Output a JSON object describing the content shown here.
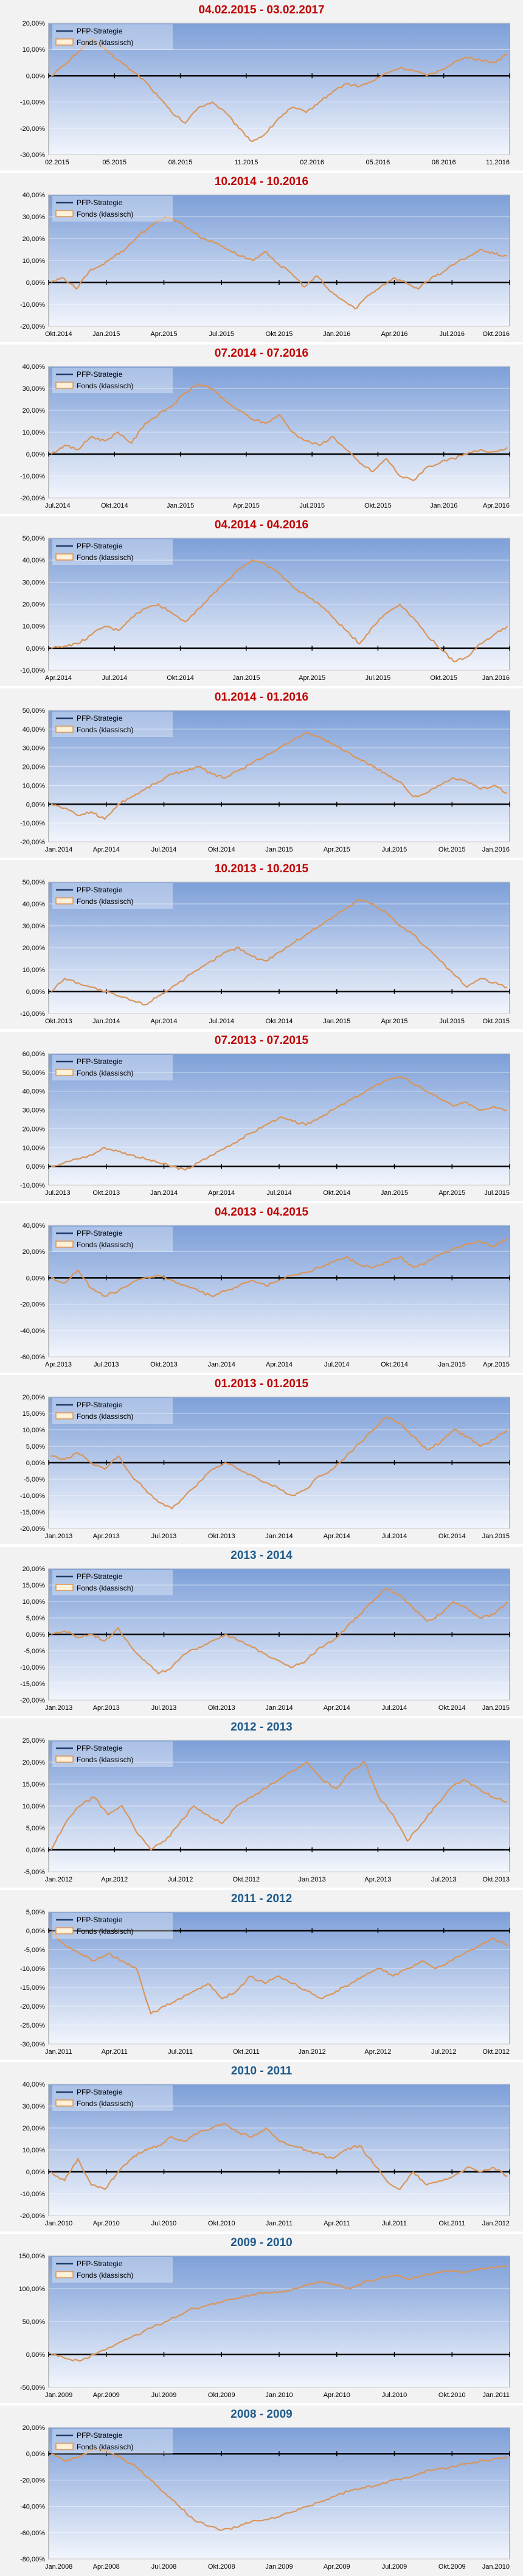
{
  "legend": {
    "series_a": "PFP-Strategie",
    "series_b": "Fonds (klassisch)"
  },
  "colors": {
    "series_a": "#1f3d6b",
    "series_b": "#d9955a",
    "title_red": "#c00000",
    "title_blue": "#1f5a8c",
    "plot_top": "#7d9fd8",
    "plot_bottom": "#f2f5fc",
    "zero_line": "#000000"
  },
  "chart_data": [
    {
      "type": "line",
      "title": "04.02.2015 - 03.02.2017",
      "title_color": "red",
      "yticks": [
        "20,00%",
        "10,00%",
        "0,00%",
        "-10,00%",
        "-20,00%",
        "-30,00%"
      ],
      "ylim": [
        -30,
        20
      ],
      "xticks": [
        "02.2015",
        "05.2015",
        "08.2015",
        "11.2015",
        "02.2016",
        "05.2016",
        "08.2016",
        "11.2016"
      ],
      "series": [
        {
          "name": "Fonds (klassisch)",
          "values": [
            0,
            4,
            9,
            14,
            10,
            6,
            2,
            -2,
            -8,
            -14,
            -18,
            -12,
            -10,
            -14,
            -20,
            -25,
            -22,
            -16,
            -12,
            -14,
            -10,
            -6,
            -3,
            -4,
            -2,
            1,
            3,
            2,
            0,
            2,
            5,
            7,
            6,
            5,
            8
          ]
        }
      ]
    },
    {
      "type": "line",
      "title": "10.2014 - 10.2016",
      "title_color": "red",
      "yticks": [
        "40,00%",
        "30,00%",
        "20,00%",
        "10,00%",
        "0,00%",
        "-10,00%",
        "-20,00%"
      ],
      "ylim": [
        -20,
        40
      ],
      "xticks": [
        "Okt.2014",
        "Jan.2015",
        "Apr.2015",
        "Jul.2015",
        "Okt.2015",
        "Jan.2016",
        "Apr.2016",
        "Jul.2016",
        "Okt.2016"
      ],
      "series": [
        {
          "name": "Fonds (klassisch)",
          "values": [
            0,
            2,
            -3,
            5,
            8,
            12,
            16,
            22,
            26,
            30,
            28,
            24,
            20,
            18,
            15,
            12,
            10,
            14,
            8,
            4,
            -2,
            3,
            -4,
            -8,
            -12,
            -6,
            -2,
            2,
            0,
            -3,
            2,
            5,
            9,
            12,
            15,
            13,
            12
          ]
        }
      ]
    },
    {
      "type": "line",
      "title": "07.2014 - 07.2016",
      "title_color": "red",
      "yticks": [
        "40,00%",
        "30,00%",
        "20,00%",
        "10,00%",
        "0,00%",
        "-10,00%",
        "-20,00%"
      ],
      "ylim": [
        -20,
        40
      ],
      "xticks": [
        "Jul.2014",
        "Okt.2014",
        "Jan.2015",
        "Apr.2015",
        "Jul.2015",
        "Okt.2015",
        "Jan.2016",
        "Apr.2016"
      ],
      "series": [
        {
          "name": "Fonds (klassisch)",
          "values": [
            0,
            4,
            2,
            8,
            6,
            10,
            5,
            14,
            18,
            22,
            28,
            32,
            30,
            24,
            20,
            16,
            14,
            18,
            10,
            6,
            4,
            8,
            2,
            -4,
            -8,
            -2,
            -10,
            -12,
            -6,
            -4,
            -2,
            0,
            2,
            1,
            3
          ]
        }
      ]
    },
    {
      "type": "line",
      "title": "04.2014 - 04.2016",
      "title_color": "red",
      "yticks": [
        "50,00%",
        "40,00%",
        "30,00%",
        "20,00%",
        "10,00%",
        "0,00%",
        "-10,00%"
      ],
      "ylim": [
        -10,
        50
      ],
      "xticks": [
        "Apr.2014",
        "Jul.2014",
        "Okt.2014",
        "Jan.2015",
        "Apr.2015",
        "Jul.2015",
        "Okt.2015",
        "Jan.2016"
      ],
      "series": [
        {
          "name": "Fonds (klassisch)",
          "values": [
            0,
            1,
            2,
            6,
            10,
            8,
            14,
            18,
            20,
            16,
            12,
            18,
            24,
            30,
            36,
            40,
            38,
            34,
            28,
            24,
            20,
            14,
            8,
            2,
            10,
            16,
            20,
            14,
            6,
            0,
            -6,
            -4,
            2,
            6,
            10
          ]
        }
      ]
    },
    {
      "type": "line",
      "title": "01.2014 - 01.2016",
      "title_color": "red",
      "yticks": [
        "50,00%",
        "40,00%",
        "30,00%",
        "20,00%",
        "10,00%",
        "0,00%",
        "-10,00%",
        "-20,00%"
      ],
      "ylim": [
        -20,
        50
      ],
      "xticks": [
        "Jan.2014",
        "Apr.2014",
        "Jul.2014",
        "Okt.2014",
        "Jan.2015",
        "Apr.2015",
        "Jul.2015",
        "Okt.2015",
        "Jan.2016"
      ],
      "series": [
        {
          "name": "Fonds (klassisch)",
          "values": [
            0,
            -2,
            -6,
            -4,
            -8,
            0,
            4,
            8,
            12,
            16,
            18,
            20,
            16,
            14,
            18,
            22,
            26,
            30,
            34,
            38,
            36,
            32,
            28,
            24,
            20,
            16,
            12,
            4,
            6,
            10,
            14,
            12,
            8,
            10,
            6
          ]
        }
      ]
    },
    {
      "type": "line",
      "title": "10.2013 - 10.2015",
      "title_color": "red",
      "yticks": [
        "50,00%",
        "40,00%",
        "30,00%",
        "20,00%",
        "10,00%",
        "0,00%",
        "-10,00%"
      ],
      "ylim": [
        -10,
        50
      ],
      "xticks": [
        "Okt.2013",
        "Jan.2014",
        "Apr.2014",
        "Jul.2014",
        "Okt.2014",
        "Jan.2015",
        "Apr.2015",
        "Jul.2015",
        "Okt.2015"
      ],
      "series": [
        {
          "name": "Fonds (klassisch)",
          "values": [
            0,
            6,
            4,
            2,
            0,
            -2,
            -4,
            -6,
            -2,
            2,
            6,
            10,
            14,
            18,
            20,
            16,
            14,
            18,
            22,
            26,
            30,
            34,
            38,
            42,
            40,
            36,
            30,
            26,
            20,
            14,
            8,
            2,
            6,
            4,
            2
          ]
        }
      ]
    },
    {
      "type": "line",
      "title": "07.2013 - 07.2015",
      "title_color": "red",
      "yticks": [
        "60,00%",
        "50,00%",
        "40,00%",
        "30,00%",
        "20,00%",
        "10,00%",
        "0,00%",
        "-10,00%"
      ],
      "ylim": [
        -10,
        60
      ],
      "xticks": [
        "Jul.2013",
        "Okt.2013",
        "Jan.2014",
        "Apr.2014",
        "Jul.2014",
        "Okt.2014",
        "Jan.2015",
        "Apr.2015",
        "Jul.2015"
      ],
      "series": [
        {
          "name": "Fonds (klassisch)",
          "values": [
            0,
            2,
            4,
            6,
            10,
            8,
            6,
            4,
            2,
            0,
            -2,
            2,
            6,
            10,
            14,
            18,
            22,
            26,
            24,
            22,
            26,
            30,
            34,
            38,
            42,
            46,
            48,
            44,
            40,
            36,
            32,
            34,
            30,
            32,
            30
          ]
        }
      ]
    },
    {
      "type": "line",
      "title": "04.2013 - 04.2015",
      "title_color": "red",
      "yticks": [
        "40,00%",
        "20,00%",
        "0,00%",
        "-20,00%",
        "-40,00%",
        "-60,00%"
      ],
      "ylim": [
        -60,
        40
      ],
      "xticks": [
        "Apr.2013",
        "Jul.2013",
        "Okt.2013",
        "Jan.2014",
        "Apr.2014",
        "Jul.2014",
        "Okt.2014",
        "Jan.2015",
        "Apr.2015"
      ],
      "series": [
        {
          "name": "Fonds (klassisch)",
          "values": [
            0,
            -4,
            6,
            -8,
            -14,
            -10,
            -4,
            0,
            2,
            -2,
            -6,
            -10,
            -14,
            -10,
            -6,
            -2,
            -6,
            -2,
            2,
            4,
            8,
            12,
            16,
            10,
            8,
            12,
            16,
            8,
            12,
            18,
            22,
            26,
            28,
            24,
            30
          ]
        }
      ]
    },
    {
      "type": "line",
      "title": "01.2013 - 01.2015",
      "title_color": "red",
      "yticks": [
        "20,00%",
        "15,00%",
        "10,00%",
        "5,00%",
        "0,00%",
        "-5,00%",
        "-10,00%",
        "-15,00%",
        "-20,00%"
      ],
      "ylim": [
        -20,
        20
      ],
      "xticks": [
        "Jan.2013",
        "Apr.2013",
        "Jul.2013",
        "Okt.2013",
        "Jan.2014",
        "Apr.2014",
        "Jul.2014",
        "Okt.2014",
        "Jan.2015"
      ],
      "series": [
        {
          "name": "Fonds (klassisch)",
          "values": [
            2,
            1,
            3,
            0,
            -2,
            2,
            -4,
            -8,
            -12,
            -14,
            -10,
            -6,
            -2,
            0,
            -2,
            -4,
            -6,
            -8,
            -10,
            -8,
            -4,
            -2,
            2,
            6,
            10,
            14,
            12,
            8,
            4,
            6,
            10,
            8,
            5,
            7,
            10
          ]
        }
      ]
    },
    {
      "type": "line",
      "title": "2013 - 2014",
      "title_color": "blue",
      "yticks": [
        "20,00%",
        "15,00%",
        "10,00%",
        "5,00%",
        "0,00%",
        "-5,00%",
        "-10,00%",
        "-15,00%",
        "-20,00%"
      ],
      "ylim": [
        -20,
        20
      ],
      "xticks": [
        "Jan.2013",
        "Apr.2013",
        "Jul.2013",
        "Okt.2013",
        "Jan.2014",
        "Apr.2014",
        "Jul.2014",
        "Okt.2014",
        "Jan.2015"
      ],
      "series": [
        {
          "name": "Fonds (klassisch)",
          "values": [
            0,
            1,
            -1,
            0,
            -2,
            2,
            -4,
            -8,
            -12,
            -10,
            -6,
            -4,
            -2,
            0,
            -2,
            -4,
            -6,
            -8,
            -10,
            -8,
            -4,
            -2,
            2,
            6,
            10,
            14,
            12,
            8,
            4,
            6,
            10,
            8,
            5,
            6,
            10
          ]
        }
      ]
    },
    {
      "type": "line",
      "title": "2012 - 2013",
      "title_color": "blue",
      "yticks": [
        "25,00%",
        "20,00%",
        "15,00%",
        "10,00%",
        "5,00%",
        "0,00%",
        "-5,00%"
      ],
      "ylim": [
        -5,
        25
      ],
      "xticks": [
        "Jan.2012",
        "Apr.2012",
        "Jul.2012",
        "Okt.2012",
        "Jan.2013",
        "Apr.2013",
        "Jul.2013",
        "Okt.2013"
      ],
      "series": [
        {
          "name": "Fonds (klassisch)",
          "values": [
            0,
            6,
            10,
            12,
            8,
            10,
            4,
            0,
            2,
            6,
            10,
            8,
            6,
            10,
            12,
            14,
            16,
            18,
            20,
            16,
            14,
            18,
            20,
            12,
            8,
            2,
            6,
            10,
            14,
            16,
            14,
            12,
            11
          ]
        }
      ]
    },
    {
      "type": "line",
      "title": "2011 - 2012",
      "title_color": "blue",
      "yticks": [
        "5,00%",
        "0,00%",
        "-5,00%",
        "-10,00%",
        "-15,00%",
        "-20,00%",
        "-25,00%",
        "-30,00%"
      ],
      "ylim": [
        -30,
        5
      ],
      "xticks": [
        "Jan.2011",
        "Apr.2011",
        "Jul.2011",
        "Okt.2011",
        "Jan.2012",
        "Apr.2012",
        "Jul.2012",
        "Okt.2012"
      ],
      "series": [
        {
          "name": "Fonds (klassisch)",
          "values": [
            0,
            -4,
            -6,
            -8,
            -6,
            -8,
            -10,
            -22,
            -20,
            -18,
            -16,
            -14,
            -18,
            -16,
            -12,
            -14,
            -12,
            -14,
            -16,
            -18,
            -16,
            -14,
            -12,
            -10,
            -12,
            -10,
            -8,
            -10,
            -8,
            -6,
            -4,
            -2,
            -4
          ]
        }
      ]
    },
    {
      "type": "line",
      "title": "2010 - 2011",
      "title_color": "blue",
      "yticks": [
        "40,00%",
        "30,00%",
        "20,00%",
        "10,00%",
        "0,00%",
        "-10,00%",
        "-20,00%"
      ],
      "ylim": [
        -20,
        40
      ],
      "xticks": [
        "Jan.2010",
        "Apr.2010",
        "Jul.2010",
        "Okt.2010",
        "Jan.2011",
        "Apr.2011",
        "Jul.2011",
        "Okt.2011",
        "Jan.2012"
      ],
      "series": [
        {
          "name": "Fonds (klassisch)",
          "values": [
            0,
            -4,
            6,
            -6,
            -8,
            0,
            6,
            10,
            12,
            16,
            14,
            18,
            20,
            22,
            18,
            16,
            20,
            14,
            12,
            10,
            8,
            6,
            10,
            12,
            4,
            -4,
            -8,
            0,
            -6,
            -4,
            -2,
            2,
            0,
            2,
            -2
          ]
        }
      ]
    },
    {
      "type": "line",
      "title": "2009 - 2010",
      "title_color": "blue",
      "yticks": [
        "150,00%",
        "100,00%",
        "50,00%",
        "0,00%",
        "-50,00%"
      ],
      "ylim": [
        -50,
        150
      ],
      "xticks": [
        "Jan.2009",
        "Apr.2009",
        "Jul.2009",
        "Okt.2009",
        "Jan.2010",
        "Apr.2010",
        "Jul.2010",
        "Okt.2010",
        "Jan.2011"
      ],
      "series": [
        {
          "name": "Fonds (klassisch)",
          "values": [
            0,
            -6,
            -10,
            0,
            10,
            20,
            30,
            40,
            50,
            60,
            70,
            75,
            80,
            85,
            90,
            95,
            95,
            100,
            105,
            110,
            105,
            100,
            110,
            115,
            120,
            115,
            120,
            125,
            128,
            125,
            130,
            132,
            135
          ]
        }
      ]
    },
    {
      "type": "line",
      "title": "2008 - 2009",
      "title_color": "blue",
      "yticks": [
        "20,00%",
        "0,00%",
        "-20,00%",
        "-40,00%",
        "-60,00%",
        "-80,00%"
      ],
      "ylim": [
        -80,
        20
      ],
      "xticks": [
        "Jan.2008",
        "Apr.2008",
        "Jul.2008",
        "Okt.2008",
        "Jan.2009",
        "Apr.2009",
        "Jul.2009",
        "Okt.2009",
        "Jan.2010"
      ],
      "series": [
        {
          "name": "Fonds (klassisch)",
          "values": [
            0,
            -6,
            -2,
            4,
            2,
            -4,
            -10,
            -20,
            -30,
            -40,
            -50,
            -55,
            -58,
            -56,
            -52,
            -50,
            -48,
            -44,
            -40,
            -36,
            -32,
            -28,
            -26,
            -24,
            -20,
            -18,
            -14,
            -12,
            -10,
            -8,
            -6,
            -4,
            -2
          ]
        }
      ]
    }
  ]
}
